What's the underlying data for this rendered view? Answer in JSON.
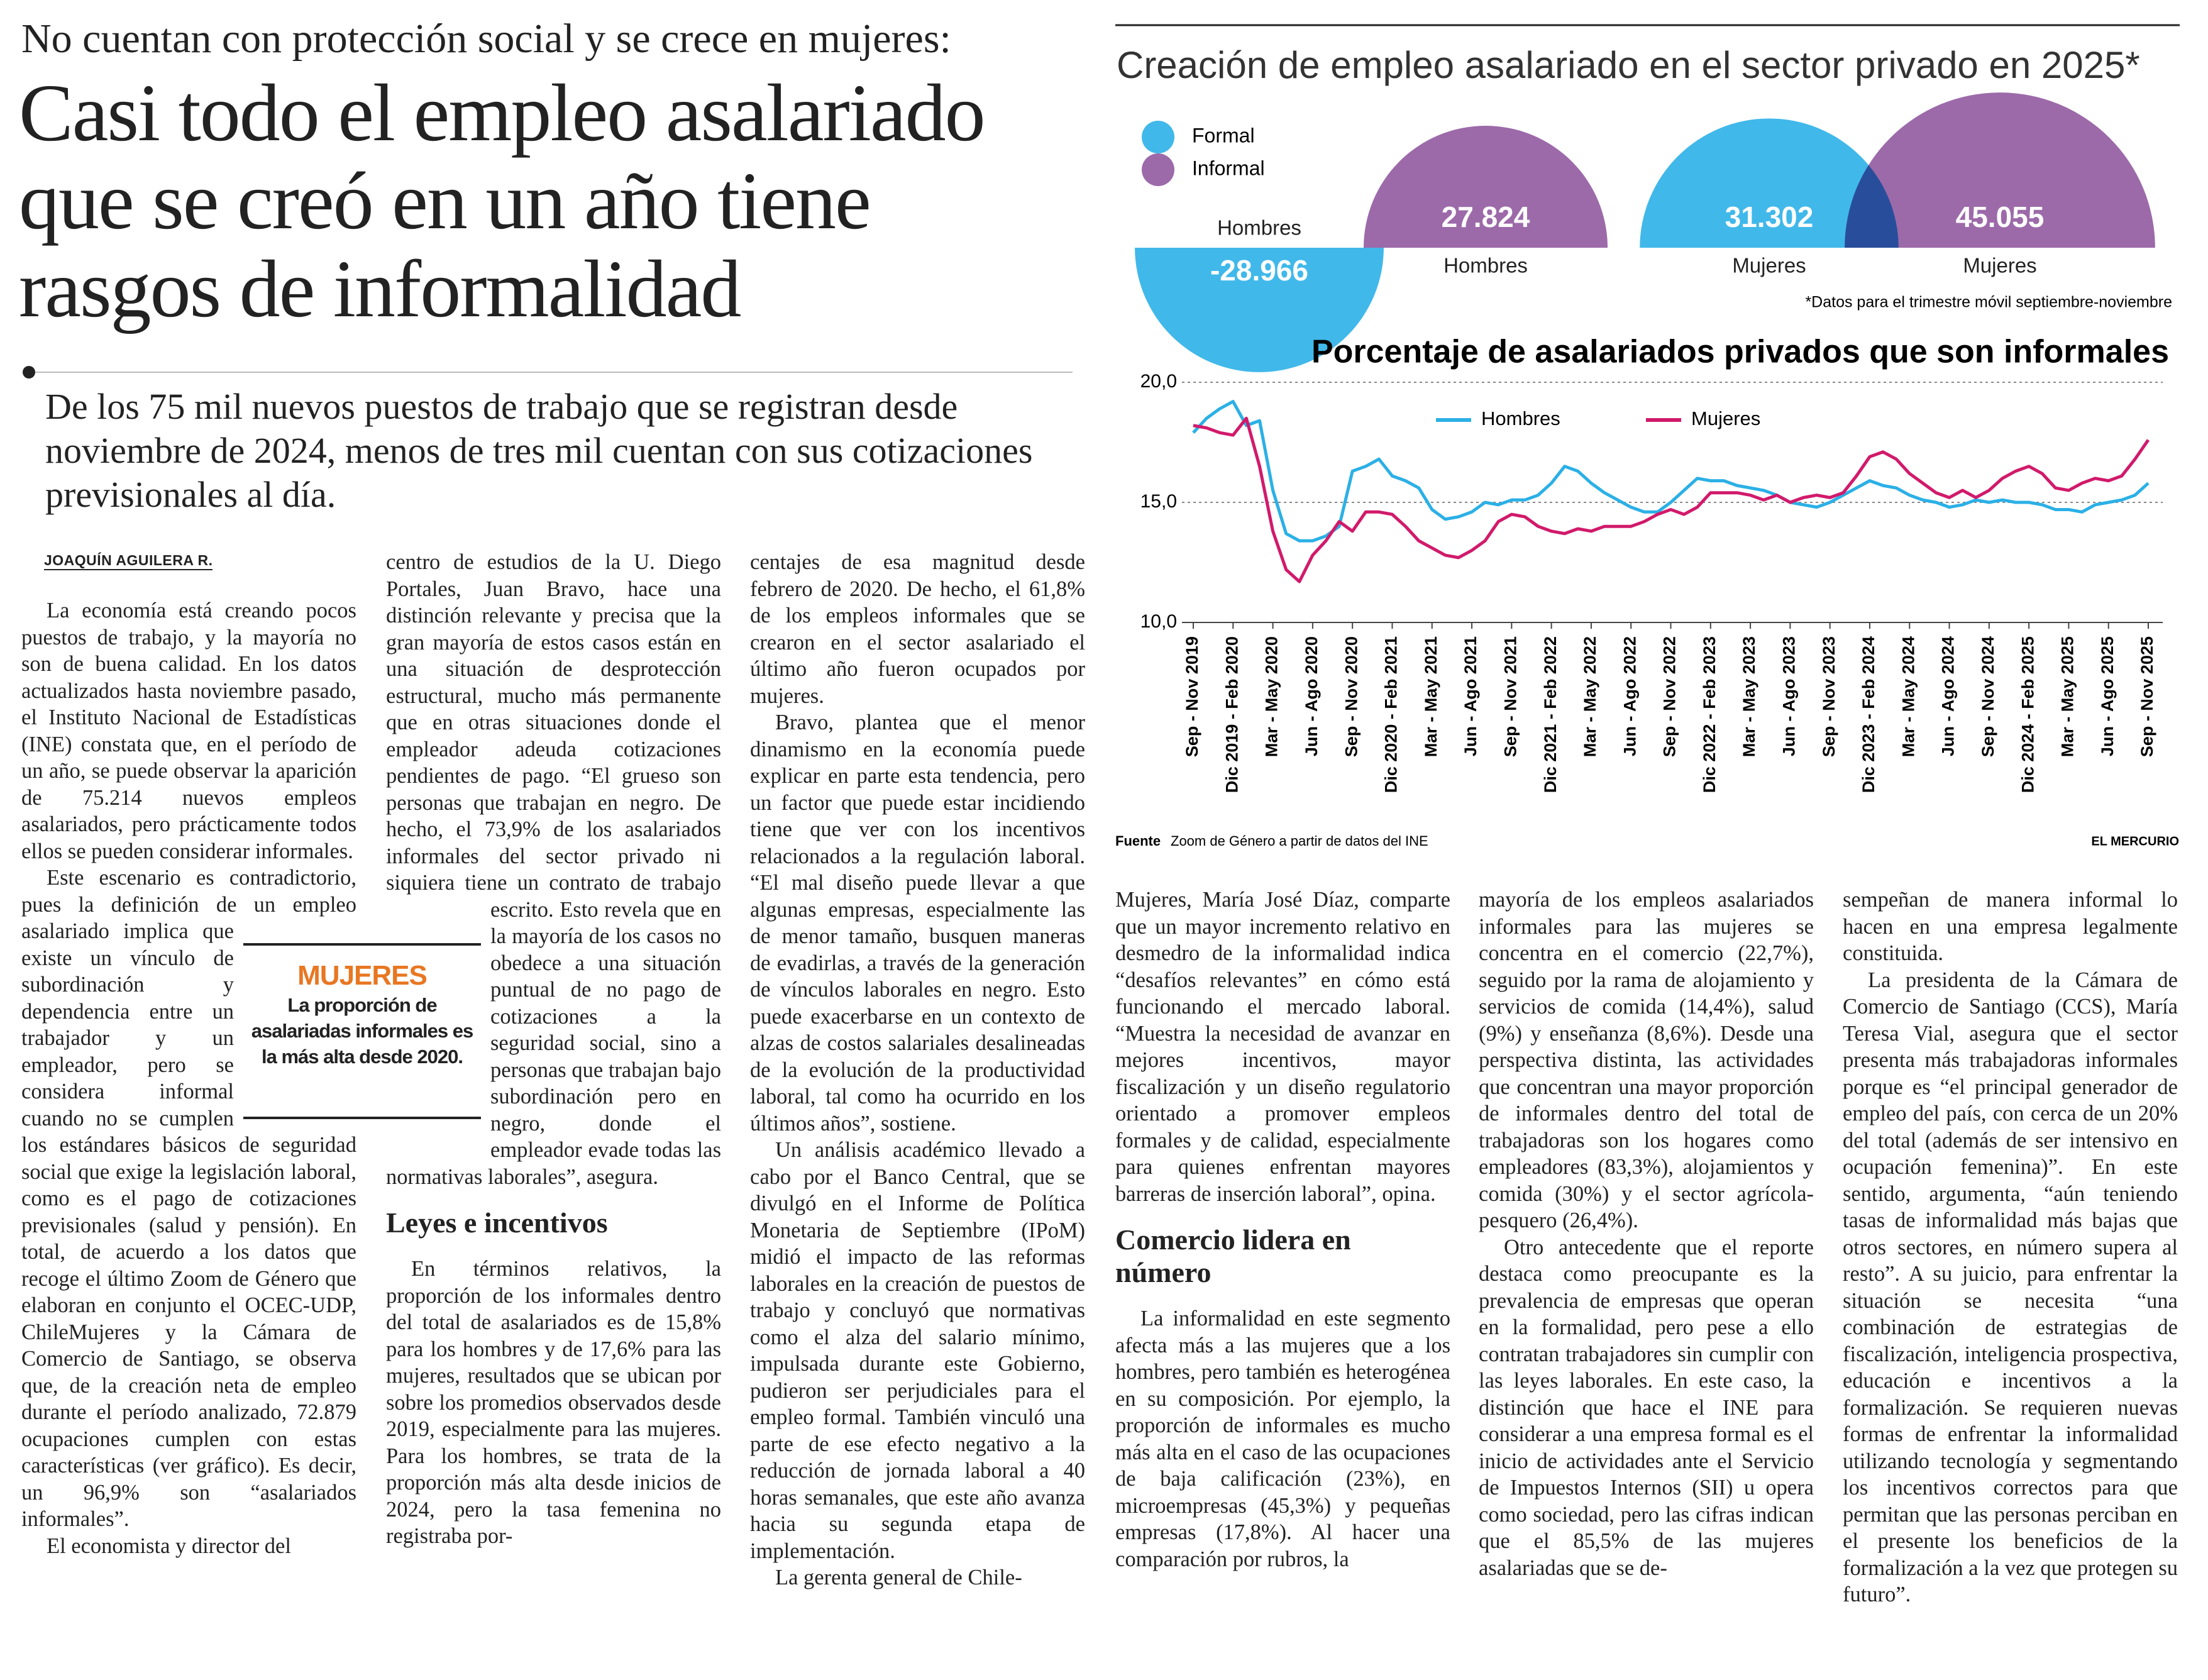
{
  "header": {
    "kicker": "No cuentan con protección social y se crece en mujeres:",
    "headline": [
      "Casi todo el empleo asalariado",
      "que se creó en un año tiene",
      "rasgos de informalidad"
    ],
    "deck": "De los 75 mil nuevos puestos de trabajo que se registran desde noviembre de 2024, menos de tres mil cuentan con sus cotizaciones previsionales al día."
  },
  "article": {
    "byline": "JOAQUÍN AGUILERA R.",
    "subheads": [
      "Leyes e incentivos",
      "Comercio lidera en número"
    ],
    "columns": [
      [
        "La economía está creando pocos puestos de trabajo, y la mayoría no son de buena calidad. En los datos actualizados hasta noviembre pasado, el Instituto Nacional de Estadísticas (INE) constata que, en el período de un año, se puede observar la aparición de 75.214 nuevos empleos asalariados, pero prácticamente todos ellos se pueden considerar informales.",
        "Este escenario es contradictorio, pues la definición de un empleo asalariado implica que existe un vínculo de subordinación y dependencia entre un trabajador y un empleador, pero se considera informal cuando no se cumplen los estándares básicos de seguridad social que exige la legislación laboral, como es el pago de cotizaciones previsionales (salud y pensión). En total, de acuerdo a los datos que recoge el último Zoom de Género que elaboran en conjunto el OCEC-UDP, ChileMujeres y la Cámara de Comercio de Santiago, se observa que, de la creación neta de empleo durante el período analizado, 72.879 ocupaciones cumplen con estas características (ver gráfico). Es decir, un 96,9% son “asalariados informales”.",
        "El economista y director del"
      ],
      [
        "centro de estudios de la U. Diego Portales, Juan Bravo, hace una distinción relevante y precisa que la gran mayoría de estos casos están en una situación de desprotección estructural, mucho más permanente que en otras situaciones donde el empleador adeuda cotizaciones pendientes de pago. “El grueso son personas que trabajan en negro. De hecho, el 73,9% de los asalariados informales del sector privado ni siquiera tiene un contrato de trabajo escrito. Esto revela que en la mayoría de los casos no obedece a una situación puntual de no pago de cotizaciones a la seguridad social, sino a personas que trabajan bajo subordinación pero en negro, donde el empleador evade todas las normativas laborales”, asegura.",
        "En términos relativos, la proporción de los informales dentro del total de asalariados es de 15,8% para los hombres y de 17,6% para las mujeres, resultados que se ubican por sobre los promedios observados desde 2019, especialmente para las mujeres. Para los hombres, se trata de la proporción más alta desde inicios de 2024, pero la tasa femenina no registraba por-"
      ],
      [
        "centajes de esa magnitud desde febrero de 2020. De hecho, el 61,8% de los empleos informales que se crearon en el sector asalariado el último año fueron ocupados por mujeres.",
        "Bravo, plantea que el menor dinamismo en la economía puede explicar en parte esta tendencia, pero un factor que puede estar incidiendo tiene que ver con los incentivos relacionados a la regulación laboral. “El mal diseño puede llevar a que algunas empresas, especialmente las de menor tamaño, busquen maneras de evadirlas, a través de la generación de vínculos laborales en negro. Esto puede exacerbarse en un contexto de alzas de costos salariales desalineadas de la evolución de la productividad laboral, tal como ha ocurrido en los últimos años”, sostiene.",
        "Un análisis académico llevado a cabo por el Banco Central, que se divulgó en el Informe de Política Monetaria de Septiembre (IPoM) midió el impacto de las reformas laborales en la creación de puestos de trabajo y concluyó que normativas como el alza del salario mínimo, impulsada durante este Gobierno, pudieron ser perjudiciales para el empleo formal. También vinculó una parte de ese efecto negativo a la reducción de jornada laboral a 40 horas semanales, que este año avanza hacia su segunda etapa de implementación.",
        "La gerenta general de Chile-"
      ],
      [
        "Mujeres, María José Díaz, comparte que un mayor incremento relativo en desmedro de la informalidad indica “desafíos relevantes” en cómo está funcionando el mercado laboral. “Muestra la necesidad de avanzar en mejores incentivos, mayor fiscalización y un diseño regulatorio orientado a promover empleos formales y de calidad, especialmente para quienes enfrentan mayores barreras de inserción laboral”, opina.",
        "La informalidad en este segmento afecta más a las mujeres que a los hombres, pero también es heterogénea en su composición. Por ejemplo, la proporción de informales es mucho más alta en el caso de las ocupaciones de baja calificación (23%), en microempresas (45,3%) y pequeñas empresas (17,8%). Al hacer una comparación por rubros, la"
      ],
      [
        "mayoría de los empleos asalariados informales para las mujeres se concentra en el comercio (22,7%), seguido por la rama de alojamiento y servicios de comida (14,4%), salud (9%) y enseñanza (8,6%). Desde una perspectiva distinta, las actividades que concentran una mayor proporción de informales dentro del total de trabajadoras son los hogares como empleadores (83,3%), alojamientos y comida (30%) y el sector agrícola-pesquero (26,4%).",
        "Otro antecedente que el reporte destaca como preocupante es la prevalencia de empresas que operan en la formalidad, pero pese a ello contratan trabajadores sin cumplir con las leyes laborales. En este caso, la distinción que hace el INE para considerar a una empresa formal es el inicio de actividades ante el Servicio de Impuestos Internos (SII) u opera como sociedad, pero las cifras indican que el 85,5% de las mujeres asalariadas que se de-"
      ],
      [
        "sempeñan de manera informal lo hacen en una empresa legalmente constituida.",
        "La presidenta de la Cámara de Comercio de Santiago (CCS), María Teresa Vial, asegura que el sector presenta más trabajadoras informales porque es “el principal generador de empleo del país, con cerca de un 20% del total (además de ser intensivo en ocupación femenina)”. En este sentido, argumenta, “aún teniendo tasas de informalidad más bajas que otros sectores, en número supera al resto”. A su juicio, para enfrentar la situación se necesita “una combinación de estrategias de fiscalización, inteligencia prospectiva, educación e incentivos a la formalización. Se requieren nuevas formas de enfrentar la informalidad utilizando tecnología y segmentando los incentivos correctos para que permitan que las personas perciban en el presente los beneficios de la formalización a la vez que protegen su futuro”."
      ]
    ]
  },
  "sidebar": {
    "label": "MUJERES",
    "text": "La proporción de asalariadas informales es la más alta desde 2020."
  },
  "chart_data": [
    {
      "type": "half-circle",
      "title": "Creación de empleo asalariado en el sector privado en 2025*",
      "categories": [
        "Hombres",
        "Mujeres"
      ],
      "series": [
        {
          "name": "Formal",
          "color": "#41b8ea",
          "values": [
            -28966,
            31302
          ],
          "value_labels": [
            "-28.966",
            "31.302"
          ]
        },
        {
          "name": "Informal",
          "color": "#9c6aa9",
          "values": [
            27824,
            45055
          ],
          "value_labels": [
            "27.824",
            "45.055"
          ]
        }
      ],
      "note": "*Datos para el trimestre móvil septiembre-noviembre"
    },
    {
      "type": "line",
      "title": "Porcentaje de asalariados privados que son informales",
      "categories": [
        "Sep - Nov 2019",
        null,
        null,
        "Dic 2019 - Feb 2020",
        null,
        null,
        "Mar - May 2020",
        null,
        null,
        "Jun - Ago 2020",
        null,
        null,
        "Sep - Nov 2020",
        null,
        null,
        "Dic 2020 - Feb 2021",
        null,
        null,
        "Mar - May 2021",
        null,
        null,
        "Jun - Ago 2021",
        null,
        null,
        "Sep - Nov 2021",
        null,
        null,
        "Dic 2021 - Feb 2022",
        null,
        null,
        "Mar - May 2022",
        null,
        null,
        "Jun - Ago 2022",
        null,
        null,
        "Sep - Nov 2022",
        null,
        null,
        "Dic 2022 - Feb 2023",
        null,
        null,
        "Mar - May 2023",
        null,
        null,
        "Jun - Ago 2023",
        null,
        null,
        "Sep - Nov 2023",
        null,
        null,
        "Dic 2023 - Feb 2024",
        null,
        null,
        "Mar - May 2024",
        null,
        null,
        "Jun - Ago 2024",
        null,
        null,
        "Sep - Nov 2024",
        null,
        null,
        "Dic 2024 - Feb 2025",
        null,
        null,
        "Mar - May 2025",
        null,
        null,
        "Jun - Ago 2025",
        null,
        null,
        "Sep - Nov 2025"
      ],
      "series": [
        {
          "name": "Hombres",
          "color": "#2bb0e6",
          "values": [
            17.9,
            18.5,
            18.9,
            19.2,
            18.2,
            18.4,
            15.5,
            13.7,
            13.4,
            13.4,
            13.6,
            14.0,
            16.3,
            16.5,
            16.8,
            16.1,
            15.9,
            15.6,
            14.7,
            14.3,
            14.4,
            14.6,
            15.0,
            14.9,
            15.1,
            15.1,
            15.3,
            15.8,
            16.5,
            16.3,
            15.8,
            15.4,
            15.1,
            14.8,
            14.6,
            14.6,
            15.0,
            15.5,
            16.0,
            15.9,
            15.9,
            15.7,
            15.6,
            15.5,
            15.3,
            15.0,
            14.9,
            14.8,
            15.0,
            15.3,
            15.6,
            15.9,
            15.7,
            15.6,
            15.3,
            15.1,
            15.0,
            14.8,
            14.9,
            15.1,
            15.0,
            15.1,
            15.0,
            15.0,
            14.9,
            14.7,
            14.7,
            14.6,
            14.9,
            15.0,
            15.1,
            15.3,
            15.8
          ]
        },
        {
          "name": "Mujeres",
          "color": "#d11a6b",
          "values": [
            18.2,
            18.1,
            17.9,
            17.8,
            18.5,
            16.5,
            13.8,
            12.2,
            11.7,
            12.8,
            13.4,
            14.2,
            13.8,
            14.6,
            14.6,
            14.5,
            14.0,
            13.4,
            13.1,
            12.8,
            12.7,
            13.0,
            13.4,
            14.2,
            14.5,
            14.4,
            14.0,
            13.8,
            13.7,
            13.9,
            13.8,
            14.0,
            14.0,
            14.0,
            14.2,
            14.5,
            14.7,
            14.5,
            14.8,
            15.4,
            15.4,
            15.4,
            15.3,
            15.1,
            15.3,
            15.0,
            15.2,
            15.3,
            15.2,
            15.4,
            16.1,
            16.9,
            17.1,
            16.8,
            16.2,
            15.8,
            15.4,
            15.2,
            15.5,
            15.2,
            15.5,
            16.0,
            16.3,
            16.5,
            16.2,
            15.6,
            15.5,
            15.8,
            16.0,
            15.9,
            16.1,
            16.8,
            17.6
          ]
        }
      ],
      "ylim": [
        10,
        20
      ],
      "yticks": [
        {
          "value": 10,
          "label": "10,0"
        },
        {
          "value": 15,
          "label": "15,0"
        },
        {
          "value": 20,
          "label": "20,0"
        }
      ],
      "grid": true,
      "legend": "top"
    }
  ],
  "source": {
    "label": "Fuente",
    "text": "Zoom de Género a partir de datos del INE",
    "publisher": "EL MERCURIO"
  }
}
